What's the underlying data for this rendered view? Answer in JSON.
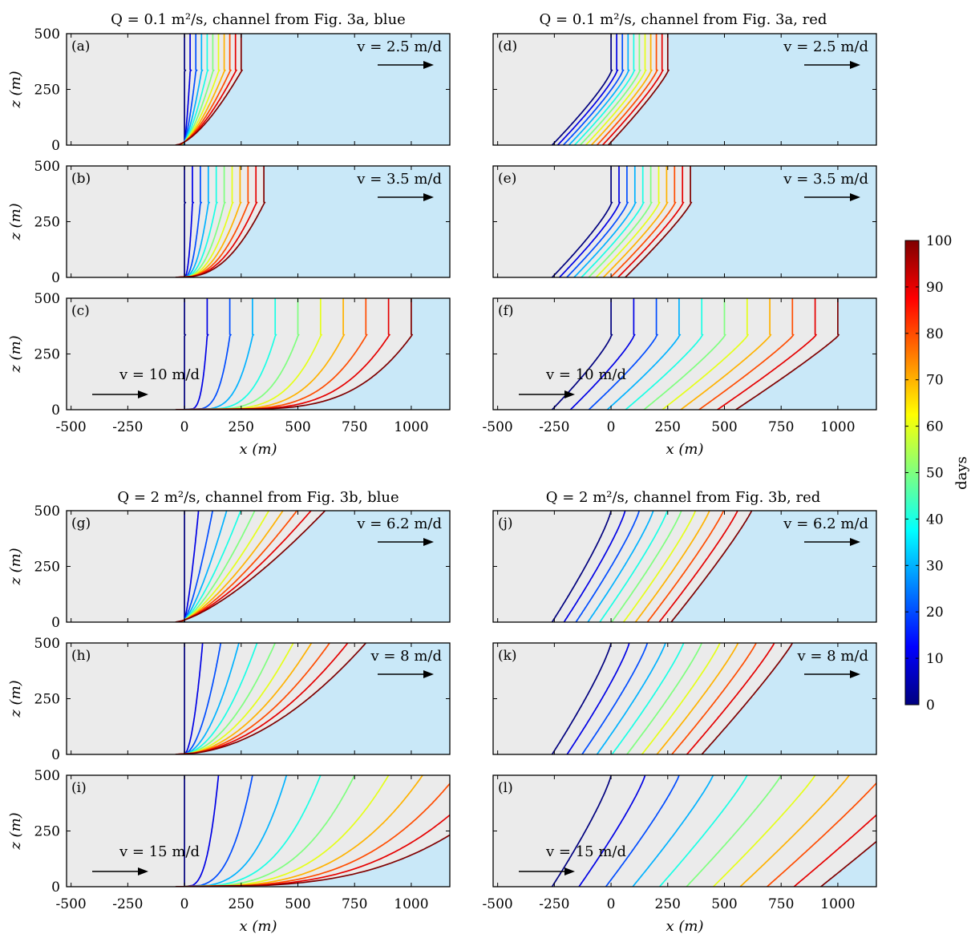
{
  "colors": {
    "ice": "#ebebeb",
    "water": "#c9e8f8",
    "colormap": [
      "#00007f",
      "#0000ff",
      "#007fff",
      "#00ffff",
      "#7fff7f",
      "#ffff00",
      "#ff7f00",
      "#ff0000",
      "#7f0000"
    ]
  },
  "group_titles": {
    "top_left": "Q = 0.1 m²/s, channel from Fig. 3a, blue",
    "top_right": "Q = 0.1 m²/s, channel from Fig. 3a, red",
    "bottom_left": "Q = 2 m²/s, channel from Fig. 3b, blue",
    "bottom_right": "Q = 2 m²/s, channel from Fig. 3b, red"
  },
  "colorbar": {
    "label": "days",
    "ticks": [
      "0",
      "10",
      "20",
      "30",
      "40",
      "50",
      "60",
      "70",
      "80",
      "90",
      "100"
    ],
    "range": [
      0,
      100
    ]
  },
  "chart_data": {
    "type": "line",
    "x_label": "x (m)",
    "y_label": "z (m)",
    "xlim": [
      -520,
      1170
    ],
    "ylim": [
      0,
      500
    ],
    "x_ticks": [
      "-500",
      "-250",
      "0",
      "250",
      "500",
      "750",
      "1000"
    ],
    "y_ticks": [
      "0",
      "250",
      "500"
    ],
    "days": [
      0,
      10,
      20,
      30,
      40,
      50,
      60,
      70,
      80,
      90,
      100
    ],
    "panels": [
      {
        "label": "(a)",
        "velocity": "v = 2.5 m/d",
        "v": 2.5,
        "mode": "blue",
        "step": 300,
        "wl": 330,
        "corner": 0.6,
        "top": false,
        "label_side": "right",
        "show_xlabel": false
      },
      {
        "label": "(b)",
        "velocity": "v = 3.5 m/d",
        "v": 3.5,
        "mode": "blue",
        "step": 300,
        "wl": 330,
        "corner": 0.35,
        "top": false,
        "label_side": "right",
        "show_xlabel": false
      },
      {
        "label": "(c)",
        "velocity": "v = 10 m/d",
        "v": 10,
        "mode": "blue",
        "step": 300,
        "wl": 330,
        "corner": 0.2,
        "top": false,
        "label_side": "left",
        "show_xlabel": true
      },
      {
        "label": "(d)",
        "velocity": "v = 2.5 m/d",
        "v": 2.5,
        "mode": "red",
        "step": 300,
        "wl": 330,
        "corner": 0.6,
        "top": false,
        "label_side": "right",
        "show_xlabel": false
      },
      {
        "label": "(e)",
        "velocity": "v = 3.5 m/d",
        "v": 3.5,
        "mode": "red",
        "step": 300,
        "wl": 330,
        "corner": 0.35,
        "top": false,
        "label_side": "right",
        "show_xlabel": false
      },
      {
        "label": "(f)",
        "velocity": "v = 10 m/d",
        "v": 10,
        "mode": "red",
        "step": 300,
        "wl": 330,
        "corner": 0.2,
        "top": false,
        "label_side": "left",
        "show_xlabel": true
      },
      {
        "label": "(g)",
        "velocity": "v = 6.2 m/d",
        "v": 6.2,
        "mode": "blue",
        "step": 0,
        "wl": 500,
        "corner": 0.7,
        "top": true,
        "label_side": "right",
        "show_xlabel": false
      },
      {
        "label": "(h)",
        "velocity": "v = 8 m/d",
        "v": 8,
        "mode": "blue",
        "step": 0,
        "wl": 500,
        "corner": 0.5,
        "top": true,
        "label_side": "right",
        "show_xlabel": false
      },
      {
        "label": "(i)",
        "velocity": "v = 15 m/d",
        "v": 15,
        "mode": "blue",
        "step": 0,
        "wl": 500,
        "corner": 0.3,
        "top": true,
        "label_side": "left",
        "show_xlabel": true
      },
      {
        "label": "(j)",
        "velocity": "v = 6.2 m/d",
        "v": 6.2,
        "mode": "red",
        "step": 0,
        "wl": 500,
        "corner": 0.7,
        "top": true,
        "label_side": "right",
        "show_xlabel": false
      },
      {
        "label": "(k)",
        "velocity": "v = 8 m/d",
        "v": 8,
        "mode": "red",
        "step": 0,
        "wl": 500,
        "corner": 0.5,
        "top": true,
        "label_side": "right",
        "show_xlabel": false
      },
      {
        "label": "(l)",
        "velocity": "v = 15 m/d",
        "v": 15,
        "mode": "red",
        "step": 0,
        "wl": 500,
        "corner": 0.3,
        "top": true,
        "label_side": "left",
        "show_xlabel": true
      }
    ]
  }
}
